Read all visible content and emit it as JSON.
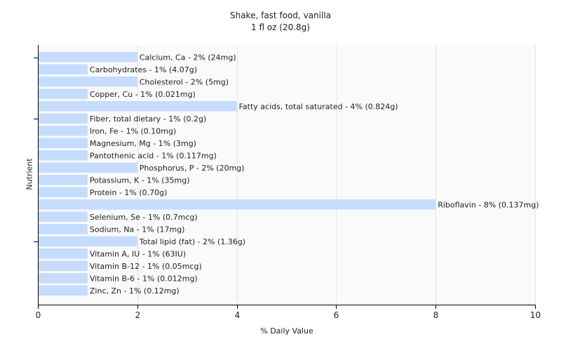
{
  "chart_data": {
    "type": "bar",
    "orientation": "horizontal",
    "title": "Shake, fast food, vanilla",
    "subtitle": "1 fl oz (20.8g)",
    "xlabel": "% Daily Value",
    "ylabel": "Nutrient",
    "xlim": [
      0,
      10
    ],
    "xticks": [
      0,
      2,
      4,
      6,
      8,
      10
    ],
    "grid": true,
    "bar_color": "#c6dcff",
    "grid_color": "#e4e4e4",
    "categories": [
      "Calcium, Ca - 2% (24mg)",
      "Carbohydrates - 1% (4.07g)",
      "Cholesterol - 2% (5mg)",
      "Copper, Cu - 1% (0.021mg)",
      "Fatty acids, total saturated - 4% (0.824g)",
      "Fiber, total dietary - 1% (0.2g)",
      "Iron, Fe - 1% (0.10mg)",
      "Magnesium, Mg - 1% (3mg)",
      "Pantothenic acid - 1% (0.117mg)",
      "Phosphorus, P - 2% (20mg)",
      "Potassium, K - 1% (35mg)",
      "Protein - 1% (0.70g)",
      "Riboflavin - 8% (0.137mg)",
      "Selenium, Se - 1% (0.7mcg)",
      "Sodium, Na - 1% (17mg)",
      "Total lipid (fat) - 2% (1.36g)",
      "Vitamin A, IU - 1% (63IU)",
      "Vitamin B-12 - 1% (0.05mcg)",
      "Vitamin B-6 - 1% (0.012mg)",
      "Zinc, Zn - 1% (0.12mg)"
    ],
    "values": [
      2,
      1,
      2,
      1,
      4,
      1,
      1,
      1,
      1,
      2,
      1,
      1,
      8,
      1,
      1,
      2,
      1,
      1,
      1,
      1
    ]
  }
}
